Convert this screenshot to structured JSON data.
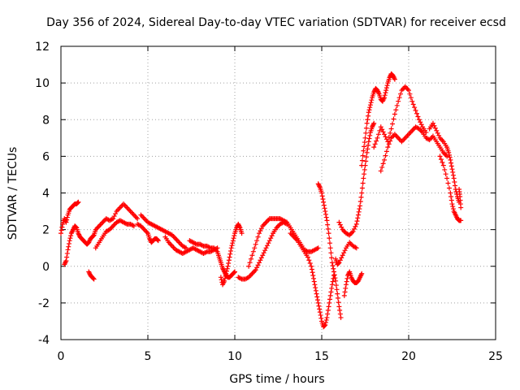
{
  "chart_data": {
    "type": "scatter",
    "title": "Day 356 of 2024, Sidereal Day-to-day VTEC variation (SDTVAR) for receiver ecsd",
    "xlabel": "GPS time / hours",
    "ylabel": "SDTVAR / TECUs",
    "xlim": [
      0,
      25
    ],
    "ylim": [
      -4,
      12
    ],
    "xticks": [
      0,
      5,
      10,
      15,
      20,
      25
    ],
    "yticks": [
      -4,
      -2,
      0,
      2,
      4,
      6,
      8,
      10,
      12
    ],
    "grid": true,
    "marker": "+",
    "color": "#ff0000",
    "series": [
      {
        "name": "main",
        "points": [
          [
            0.0,
            1.8
          ],
          [
            0.1,
            2.3
          ],
          [
            0.2,
            2.6
          ],
          [
            0.3,
            2.4
          ],
          [
            0.4,
            2.8
          ],
          [
            0.5,
            3.1
          ],
          [
            0.6,
            3.2
          ],
          [
            0.7,
            3.3
          ],
          [
            0.8,
            3.4
          ],
          [
            0.9,
            3.4
          ],
          [
            1.0,
            3.5
          ],
          [
            0.2,
            0.1
          ],
          [
            0.3,
            0.3
          ],
          [
            0.4,
            0.9
          ],
          [
            0.5,
            1.4
          ],
          [
            0.6,
            1.8
          ],
          [
            0.7,
            2.0
          ],
          [
            0.8,
            2.2
          ],
          [
            0.9,
            2.1
          ],
          [
            1.0,
            1.8
          ],
          [
            1.1,
            1.6
          ],
          [
            1.2,
            1.5
          ],
          [
            1.3,
            1.4
          ],
          [
            1.4,
            1.3
          ],
          [
            1.5,
            1.2
          ],
          [
            1.6,
            1.3
          ],
          [
            1.7,
            1.5
          ],
          [
            1.8,
            1.6
          ],
          [
            1.9,
            1.7
          ],
          [
            2.0,
            2.0
          ],
          [
            2.2,
            2.2
          ],
          [
            2.4,
            2.4
          ],
          [
            2.6,
            2.6
          ],
          [
            2.8,
            2.5
          ],
          [
            3.0,
            2.6
          ],
          [
            3.2,
            3.0
          ],
          [
            3.4,
            3.2
          ],
          [
            3.6,
            3.4
          ],
          [
            3.8,
            3.2
          ],
          [
            4.0,
            3.0
          ],
          [
            4.2,
            2.8
          ],
          [
            4.4,
            2.6
          ],
          [
            2.0,
            1.0
          ],
          [
            2.2,
            1.3
          ],
          [
            2.4,
            1.6
          ],
          [
            2.6,
            1.9
          ],
          [
            2.8,
            2.0
          ],
          [
            3.0,
            2.2
          ],
          [
            3.2,
            2.4
          ],
          [
            3.4,
            2.5
          ],
          [
            3.6,
            2.4
          ],
          [
            3.8,
            2.3
          ],
          [
            4.0,
            2.3
          ],
          [
            4.2,
            2.2
          ],
          [
            1.6,
            -0.3
          ],
          [
            1.7,
            -0.5
          ],
          [
            1.8,
            -0.6
          ],
          [
            1.9,
            -0.7
          ],
          [
            4.4,
            2.3
          ],
          [
            4.6,
            2.2
          ],
          [
            4.8,
            2.0
          ],
          [
            5.0,
            1.8
          ],
          [
            5.1,
            1.5
          ],
          [
            5.2,
            1.3
          ],
          [
            5.3,
            1.4
          ],
          [
            5.4,
            1.5
          ],
          [
            5.5,
            1.5
          ],
          [
            5.6,
            1.4
          ],
          [
            4.6,
            2.8
          ],
          [
            4.8,
            2.6
          ],
          [
            5.0,
            2.4
          ],
          [
            5.2,
            2.3
          ],
          [
            5.4,
            2.2
          ],
          [
            5.6,
            2.1
          ],
          [
            5.8,
            2.0
          ],
          [
            6.0,
            1.9
          ],
          [
            6.2,
            1.8
          ],
          [
            6.4,
            1.7
          ],
          [
            6.6,
            1.5
          ],
          [
            6.8,
            1.3
          ],
          [
            7.0,
            1.1
          ],
          [
            7.2,
            1.0
          ],
          [
            6.0,
            1.6
          ],
          [
            6.2,
            1.3
          ],
          [
            6.4,
            1.1
          ],
          [
            6.6,
            0.9
          ],
          [
            6.8,
            0.8
          ],
          [
            7.0,
            0.7
          ],
          [
            7.2,
            0.8
          ],
          [
            7.4,
            0.9
          ],
          [
            7.6,
            1.0
          ],
          [
            7.8,
            0.9
          ],
          [
            8.0,
            0.8
          ],
          [
            8.2,
            0.7
          ],
          [
            8.4,
            0.8
          ],
          [
            8.6,
            0.8
          ],
          [
            8.8,
            0.9
          ],
          [
            9.0,
            1.0
          ],
          [
            7.4,
            1.4
          ],
          [
            7.6,
            1.3
          ],
          [
            7.8,
            1.2
          ],
          [
            8.0,
            1.2
          ],
          [
            8.2,
            1.1
          ],
          [
            8.4,
            1.1
          ],
          [
            8.6,
            1.0
          ],
          [
            8.8,
            1.0
          ],
          [
            9.0,
            0.8
          ],
          [
            9.1,
            0.5
          ],
          [
            9.2,
            0.2
          ],
          [
            9.3,
            -0.1
          ],
          [
            9.4,
            -0.3
          ],
          [
            9.5,
            -0.5
          ],
          [
            9.6,
            -0.6
          ],
          [
            9.7,
            -0.6
          ],
          [
            9.8,
            -0.5
          ],
          [
            9.9,
            -0.4
          ],
          [
            10.0,
            -0.3
          ],
          [
            9.2,
            -0.6
          ],
          [
            9.3,
            -1.0
          ],
          [
            9.4,
            -0.8
          ],
          [
            9.5,
            -0.4
          ],
          [
            9.6,
            0.0
          ],
          [
            9.7,
            0.5
          ],
          [
            9.8,
            1.0
          ],
          [
            9.9,
            1.4
          ],
          [
            10.0,
            1.8
          ],
          [
            10.1,
            2.1
          ],
          [
            10.2,
            2.3
          ],
          [
            10.3,
            2.1
          ],
          [
            10.4,
            1.8
          ],
          [
            10.2,
            -0.6
          ],
          [
            10.4,
            -0.7
          ],
          [
            10.6,
            -0.7
          ],
          [
            10.8,
            -0.6
          ],
          [
            11.0,
            -0.4
          ],
          [
            11.2,
            -0.2
          ],
          [
            11.4,
            0.2
          ],
          [
            11.6,
            0.6
          ],
          [
            11.8,
            1.0
          ],
          [
            12.0,
            1.4
          ],
          [
            12.2,
            1.8
          ],
          [
            12.4,
            2.1
          ],
          [
            12.6,
            2.3
          ],
          [
            12.8,
            2.4
          ],
          [
            13.0,
            2.3
          ],
          [
            10.8,
            0.0
          ],
          [
            11.0,
            0.6
          ],
          [
            11.2,
            1.2
          ],
          [
            11.4,
            1.8
          ],
          [
            11.6,
            2.2
          ],
          [
            11.8,
            2.4
          ],
          [
            12.0,
            2.6
          ],
          [
            12.2,
            2.6
          ],
          [
            12.4,
            2.6
          ],
          [
            12.6,
            2.6
          ],
          [
            12.8,
            2.5
          ],
          [
            13.0,
            2.4
          ],
          [
            13.2,
            2.1
          ],
          [
            13.4,
            1.8
          ],
          [
            13.6,
            1.5
          ],
          [
            13.8,
            1.2
          ],
          [
            14.0,
            0.9
          ],
          [
            14.2,
            0.8
          ],
          [
            14.4,
            0.8
          ],
          [
            14.6,
            0.9
          ],
          [
            14.8,
            1.0
          ],
          [
            13.2,
            1.8
          ],
          [
            13.4,
            1.6
          ],
          [
            13.6,
            1.4
          ],
          [
            13.8,
            1.1
          ],
          [
            14.0,
            0.8
          ],
          [
            14.2,
            0.5
          ],
          [
            14.4,
            0.0
          ],
          [
            14.5,
            -0.5
          ],
          [
            14.6,
            -1.0
          ],
          [
            14.7,
            -1.5
          ],
          [
            14.8,
            -2.0
          ],
          [
            14.9,
            -2.5
          ],
          [
            15.0,
            -3.0
          ],
          [
            15.1,
            -3.3
          ],
          [
            15.2,
            -3.2
          ],
          [
            15.3,
            -2.8
          ],
          [
            15.4,
            -2.2
          ],
          [
            15.5,
            -1.6
          ],
          [
            15.6,
            -1.0
          ],
          [
            15.7,
            -0.5
          ],
          [
            14.8,
            4.5
          ],
          [
            14.9,
            4.3
          ],
          [
            15.0,
            4.0
          ],
          [
            15.1,
            3.5
          ],
          [
            15.2,
            3.0
          ],
          [
            15.3,
            2.5
          ],
          [
            15.4,
            1.8
          ],
          [
            15.5,
            1.0
          ],
          [
            15.6,
            0.2
          ],
          [
            15.7,
            -0.3
          ],
          [
            15.8,
            -0.8
          ],
          [
            15.9,
            -1.5
          ],
          [
            16.0,
            -2.2
          ],
          [
            16.1,
            -2.8
          ],
          [
            15.8,
            0.4
          ],
          [
            15.9,
            0.1
          ],
          [
            16.0,
            0.2
          ],
          [
            16.2,
            0.6
          ],
          [
            16.4,
            1.0
          ],
          [
            16.6,
            1.3
          ],
          [
            16.8,
            1.1
          ],
          [
            17.0,
            1.0
          ],
          [
            16.3,
            -1.6
          ],
          [
            16.4,
            -1.0
          ],
          [
            16.5,
            -0.5
          ],
          [
            16.6,
            -0.3
          ],
          [
            16.7,
            -0.6
          ],
          [
            16.8,
            -0.8
          ],
          [
            16.9,
            -0.9
          ],
          [
            17.0,
            -0.9
          ],
          [
            17.1,
            -0.8
          ],
          [
            17.2,
            -0.6
          ],
          [
            17.3,
            -0.4
          ],
          [
            16.0,
            2.4
          ],
          [
            16.2,
            2.0
          ],
          [
            16.4,
            1.8
          ],
          [
            16.6,
            1.7
          ],
          [
            16.8,
            1.9
          ],
          [
            17.0,
            2.3
          ],
          [
            17.1,
            2.8
          ],
          [
            17.2,
            3.3
          ],
          [
            17.3,
            4.0
          ],
          [
            17.4,
            4.8
          ],
          [
            17.5,
            5.5
          ],
          [
            17.6,
            6.2
          ],
          [
            17.7,
            6.8
          ],
          [
            17.8,
            7.3
          ],
          [
            17.9,
            7.6
          ],
          [
            18.0,
            7.8
          ],
          [
            17.3,
            5.5
          ],
          [
            17.4,
            6.3
          ],
          [
            17.5,
            7.0
          ],
          [
            17.6,
            7.8
          ],
          [
            17.7,
            8.4
          ],
          [
            17.8,
            8.8
          ],
          [
            17.9,
            9.2
          ],
          [
            18.0,
            9.5
          ],
          [
            18.1,
            9.7
          ],
          [
            18.2,
            9.6
          ],
          [
            18.3,
            9.4
          ],
          [
            18.4,
            9.1
          ],
          [
            18.5,
            9.0
          ],
          [
            18.6,
            9.2
          ],
          [
            18.7,
            9.6
          ],
          [
            18.8,
            10.0
          ],
          [
            18.9,
            10.3
          ],
          [
            19.0,
            10.5
          ],
          [
            19.1,
            10.4
          ],
          [
            19.2,
            10.2
          ],
          [
            18.0,
            6.5
          ],
          [
            18.2,
            7.0
          ],
          [
            18.4,
            7.6
          ],
          [
            18.6,
            7.2
          ],
          [
            18.8,
            6.8
          ],
          [
            19.0,
            7.5
          ],
          [
            19.2,
            8.3
          ],
          [
            19.4,
            9.0
          ],
          [
            19.6,
            9.6
          ],
          [
            19.8,
            9.8
          ],
          [
            20.0,
            9.6
          ],
          [
            20.2,
            9.0
          ],
          [
            20.4,
            8.5
          ],
          [
            20.6,
            8.0
          ],
          [
            20.8,
            7.6
          ],
          [
            21.0,
            7.3
          ],
          [
            18.4,
            5.2
          ],
          [
            18.6,
            5.8
          ],
          [
            18.8,
            6.5
          ],
          [
            19.0,
            7.0
          ],
          [
            19.2,
            7.2
          ],
          [
            19.4,
            7.0
          ],
          [
            19.6,
            6.8
          ],
          [
            19.8,
            7.0
          ],
          [
            20.0,
            7.2
          ],
          [
            20.2,
            7.4
          ],
          [
            20.4,
            7.6
          ],
          [
            20.6,
            7.5
          ],
          [
            20.8,
            7.3
          ],
          [
            21.0,
            7.0
          ],
          [
            21.2,
            6.9
          ],
          [
            21.4,
            7.1
          ],
          [
            21.6,
            6.8
          ],
          [
            21.8,
            6.5
          ],
          [
            22.0,
            6.2
          ],
          [
            22.2,
            6.0
          ],
          [
            21.2,
            7.5
          ],
          [
            21.4,
            7.8
          ],
          [
            21.6,
            7.4
          ],
          [
            21.8,
            7.0
          ],
          [
            22.0,
            6.8
          ],
          [
            22.2,
            6.5
          ],
          [
            22.3,
            6.2
          ],
          [
            22.4,
            5.8
          ],
          [
            22.5,
            5.3
          ],
          [
            22.6,
            4.8
          ],
          [
            22.7,
            4.2
          ],
          [
            22.8,
            3.8
          ],
          [
            22.9,
            3.5
          ],
          [
            21.8,
            6.0
          ],
          [
            22.0,
            5.5
          ],
          [
            22.2,
            4.8
          ],
          [
            22.4,
            4.0
          ],
          [
            22.5,
            3.4
          ],
          [
            22.6,
            3.0
          ],
          [
            22.7,
            2.8
          ],
          [
            22.8,
            2.6
          ],
          [
            22.9,
            2.5
          ],
          [
            23.0,
            2.5
          ],
          [
            22.9,
            4.2
          ],
          [
            22.95,
            3.8
          ],
          [
            23.0,
            3.2
          ]
        ]
      }
    ]
  }
}
